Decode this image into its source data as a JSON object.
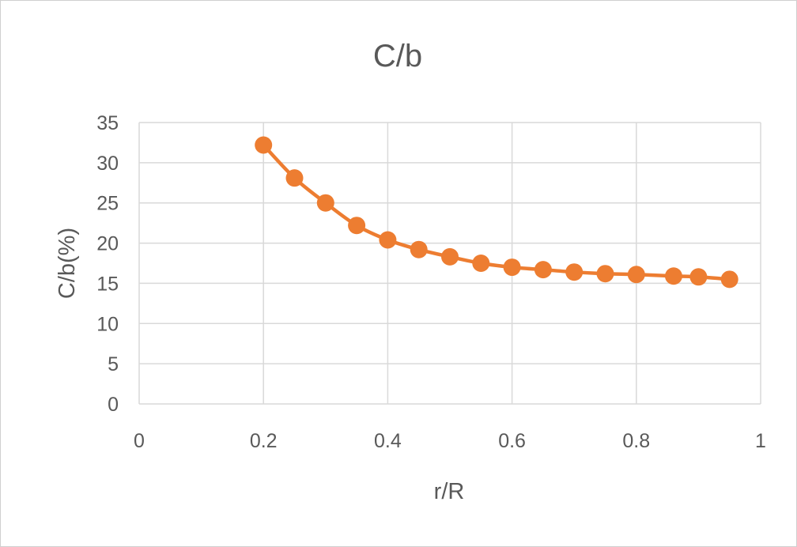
{
  "colors": {
    "series": "#ED7D31",
    "grid": "#D9D9D9",
    "text": "#595959",
    "frame": "#D0D0D0"
  },
  "chart_data": {
    "type": "scatter",
    "title": "C/b",
    "xlabel": "r/R",
    "ylabel": "C/b(%)",
    "xlim": [
      0,
      1
    ],
    "ylim": [
      0,
      35
    ],
    "x_ticks": [
      "0",
      "0.2",
      "0.4",
      "0.6",
      "0.8",
      "1"
    ],
    "y_ticks": [
      "0",
      "5",
      "10",
      "15",
      "20",
      "25",
      "30",
      "35"
    ],
    "grid": true,
    "legend": "none",
    "line_style": "smooth with markers",
    "series": [
      {
        "x": [
          0.2,
          0.25,
          0.3,
          0.35,
          0.4,
          0.45,
          0.5,
          0.55,
          0.6,
          0.65,
          0.7,
          0.75,
          0.8,
          0.86,
          0.9,
          0.95
        ],
        "y": [
          32.2,
          28.1,
          25.0,
          22.2,
          20.4,
          19.2,
          18.3,
          17.5,
          17.0,
          16.7,
          16.4,
          16.2,
          16.1,
          15.9,
          15.8,
          15.5
        ]
      }
    ]
  }
}
